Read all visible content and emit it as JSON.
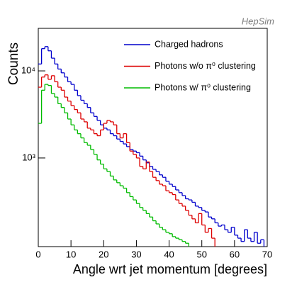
{
  "chart_data": {
    "type": "histogram",
    "annotation": "HepSim",
    "ylabel": "Counts",
    "xlabel": "Angle wrt jet momentum [degrees]",
    "bins": [
      0,
      1,
      2,
      3,
      4,
      5,
      6,
      7,
      8,
      9,
      10,
      11,
      12,
      13,
      14,
      15,
      16,
      17,
      18,
      19,
      20,
      21,
      22,
      23,
      24,
      25,
      26,
      27,
      28,
      29,
      30,
      31,
      32,
      33,
      34,
      35,
      36,
      37,
      38,
      39,
      40,
      41,
      42,
      43,
      44,
      45,
      46,
      47,
      48,
      49,
      50,
      51,
      52,
      53,
      54,
      55,
      56,
      57,
      58,
      59,
      60,
      61,
      62,
      63,
      64,
      65,
      66,
      67,
      68,
      69,
      70
    ],
    "series": [
      {
        "name": "Charged hadrons",
        "color": "#0000cc",
        "values": [
          12000,
          18000,
          19000,
          17000,
          14000,
          12000,
          10500,
          9500,
          8500,
          7500,
          7000,
          6000,
          5200,
          4600,
          4200,
          3800,
          3300,
          3000,
          2700,
          2400,
          2200,
          2100,
          1900,
          1800,
          1650,
          1550,
          1450,
          1350,
          1250,
          1200,
          1150,
          1050,
          950,
          880,
          800,
          740,
          700,
          640,
          600,
          540,
          500,
          470,
          430,
          400,
          370,
          340,
          330,
          310,
          280,
          270,
          250,
          240,
          210,
          200,
          180,
          165,
          170,
          150,
          140,
          160,
          130,
          120,
          110,
          150,
          120,
          110,
          140,
          105,
          115,
          null
        ]
      },
      {
        "name": "Photons w/o π⁰ clustering",
        "color": "#dd0000",
        "values": [
          6500,
          8500,
          9000,
          8000,
          8800,
          7500,
          6500,
          6000,
          5000,
          4500,
          4000,
          3600,
          3300,
          2800,
          2600,
          2200,
          2100,
          1900,
          1800,
          2100,
          2500,
          2700,
          2600,
          2400,
          1900,
          1700,
          1900,
          1500,
          1200,
          1100,
          1000,
          800,
          750,
          900,
          700,
          600,
          550,
          500,
          480,
          420,
          400,
          380,
          330,
          300,
          280,
          250,
          220,
          200,
          180,
          230,
          170,
          140,
          155,
          120,
          null,
          null,
          null,
          null,
          null,
          null,
          null,
          null,
          null,
          null,
          null,
          null,
          null,
          null,
          null,
          null
        ]
      },
      {
        "name": "Photons w/ π⁰ clustering",
        "color": "#00bb00",
        "values": [
          2500,
          6000,
          7000,
          6800,
          5500,
          5000,
          4200,
          3800,
          3300,
          2800,
          2400,
          2100,
          1900,
          1700,
          1500,
          1400,
          1250,
          1100,
          950,
          850,
          750,
          700,
          620,
          560,
          520,
          480,
          450,
          400,
          360,
          330,
          300,
          270,
          250,
          230,
          210,
          190,
          175,
          160,
          150,
          140,
          135,
          125,
          120,
          115,
          110,
          105,
          null,
          null,
          null,
          null,
          null,
          null,
          null,
          null,
          null,
          null,
          null,
          null,
          null,
          null,
          null,
          null,
          null,
          null,
          null,
          null,
          null,
          null,
          null,
          null
        ]
      }
    ],
    "xlim": [
      0,
      70
    ],
    "xticks": [
      0,
      10,
      20,
      30,
      40,
      50,
      60,
      70
    ],
    "ylim": [
      96,
      30800
    ],
    "log_y": true,
    "yticks": [
      {
        "value": 1000,
        "label": "10³"
      },
      {
        "value": 10000,
        "label": "10⁴"
      }
    ],
    "legend": "upper right"
  }
}
